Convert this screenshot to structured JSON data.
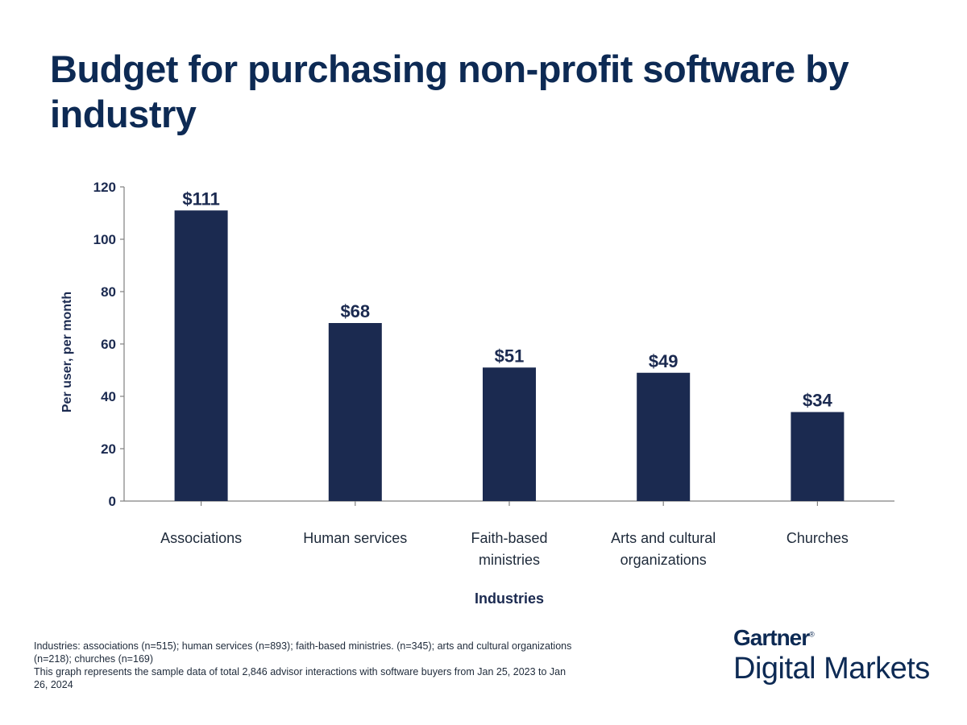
{
  "title": "Budget for purchasing non-profit software by industry",
  "chart_data": {
    "type": "bar",
    "title": "Budget for purchasing non-profit software by industry",
    "categories": [
      [
        "Associations"
      ],
      [
        "Human services"
      ],
      [
        "Faith-based",
        "ministries"
      ],
      [
        "Arts and cultural",
        "organizations"
      ],
      [
        "Churches"
      ]
    ],
    "values": [
      111,
      68,
      51,
      49,
      34
    ],
    "data_labels": [
      "$111",
      "$68",
      "$51",
      "$49",
      "$34"
    ],
    "xlabel": "Industries",
    "ylabel": "Per user, per month",
    "ylim": [
      0,
      120
    ],
    "yticks": [
      0,
      20,
      40,
      60,
      80,
      100,
      120
    ],
    "grid": false,
    "legend": "none",
    "bar_color": "#1b2a50"
  },
  "footnote": [
    "Industries: associations (n=515); human services (n=893); faith-based ministries. (n=345); arts and cultural organizations (n=218); churches (n=169)",
    "This graph represents the sample data of total 2,846 advisor interactions with software buyers from Jan 25, 2023 to Jan 26, 2024"
  ],
  "logo": {
    "line1": "Gartner",
    "mark": "®",
    "line2": "Digital Markets"
  }
}
